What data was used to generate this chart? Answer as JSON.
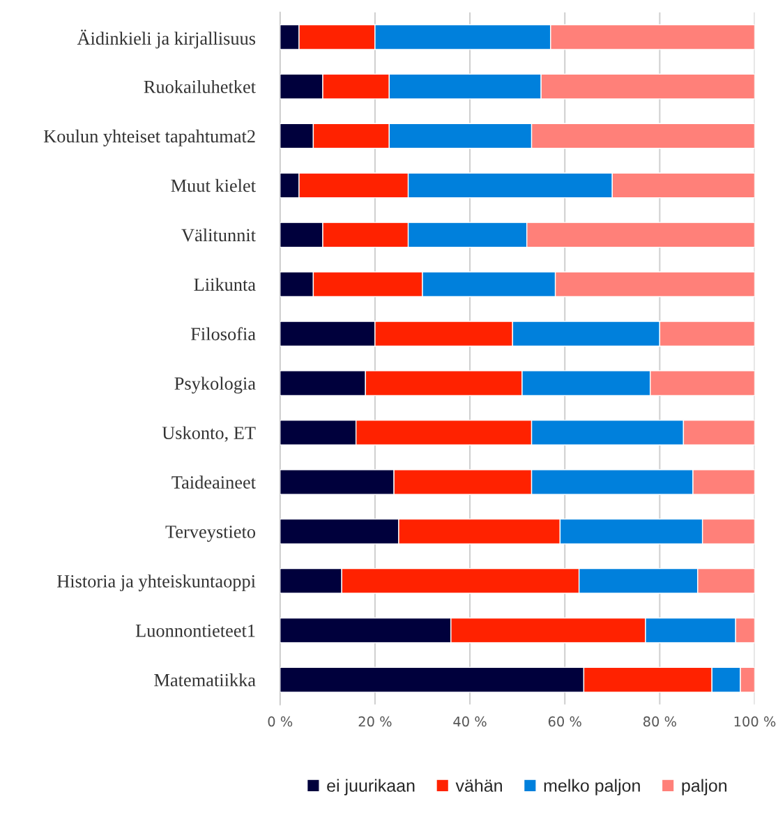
{
  "chart_data": {
    "type": "bar",
    "orientation": "horizontal",
    "stacked": true,
    "categories": [
      "Äidinkieli ja kirjallisuus",
      "Ruokailuhetket",
      "Koulun yhteiset tapahtumat2",
      "Muut kielet",
      "Välitunnit",
      "Liikunta",
      "Filosofia",
      "Psykologia",
      "Uskonto, ET",
      "Taideaineet",
      "Terveystieto",
      "Historia ja yhteiskuntaoppi",
      "Luonnontieteet1",
      "Matematiikka"
    ],
    "series": [
      {
        "name": "ei juurikaan",
        "color": "#00003c",
        "values": [
          4,
          9,
          7,
          4,
          9,
          7,
          20,
          18,
          16,
          24,
          25,
          13,
          36,
          64
        ]
      },
      {
        "name": "vähän",
        "color": "#ff2200",
        "values": [
          16,
          14,
          16,
          23,
          18,
          23,
          29,
          33,
          37,
          29,
          34,
          50,
          41,
          27
        ]
      },
      {
        "name": "melko paljon",
        "color": "#0080dc",
        "values": [
          37,
          32,
          30,
          43,
          25,
          28,
          31,
          27,
          32,
          34,
          30,
          25,
          19,
          6
        ]
      },
      {
        "name": "paljon",
        "color": "#ff8079",
        "values": [
          43,
          45,
          47,
          30,
          48,
          42,
          20,
          22,
          15,
          13,
          11,
          12,
          4,
          3
        ]
      }
    ],
    "xlim": [
      0,
      100
    ],
    "xticks": [
      {
        "value": 0,
        "label": "0 %"
      },
      {
        "value": 20,
        "label": "20 %"
      },
      {
        "value": 40,
        "label": "40 %"
      },
      {
        "value": 60,
        "label": "60 %"
      },
      {
        "value": 80,
        "label": "80 %"
      },
      {
        "value": 100,
        "label": "100 %"
      }
    ],
    "grid": "x",
    "legend": "bottom"
  }
}
